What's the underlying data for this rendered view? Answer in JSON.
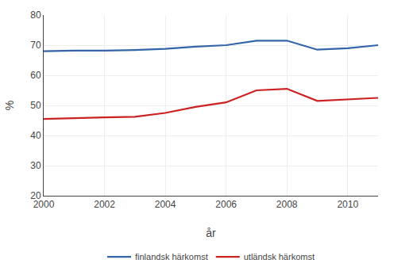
{
  "chart_data": {
    "type": "line",
    "x": [
      2000,
      2001,
      2002,
      2003,
      2004,
      2005,
      2006,
      2007,
      2008,
      2009,
      2010,
      2011
    ],
    "series": [
      {
        "name": "finlandsk härkomst",
        "color": "#3465A8",
        "values": [
          68.0,
          68.2,
          68.2,
          68.4,
          68.8,
          69.5,
          70.0,
          71.5,
          71.5,
          68.5,
          69.0,
          70.0
        ]
      },
      {
        "name": "utländsk härkomst",
        "color": "#CC2222",
        "values": [
          45.5,
          45.8,
          46.0,
          46.2,
          47.5,
          49.5,
          51.0,
          55.0,
          55.5,
          51.5,
          52.0,
          52.5
        ]
      }
    ],
    "xlabel": "år",
    "ylabel": "%",
    "xlim": [
      2000,
      2011
    ],
    "xticks": [
      2000,
      2002,
      2004,
      2006,
      2008,
      2010
    ],
    "ylim": [
      20,
      80
    ],
    "yticks": [
      20,
      30,
      40,
      50,
      60,
      70,
      80
    ],
    "grid": true,
    "legend": "bottom"
  }
}
